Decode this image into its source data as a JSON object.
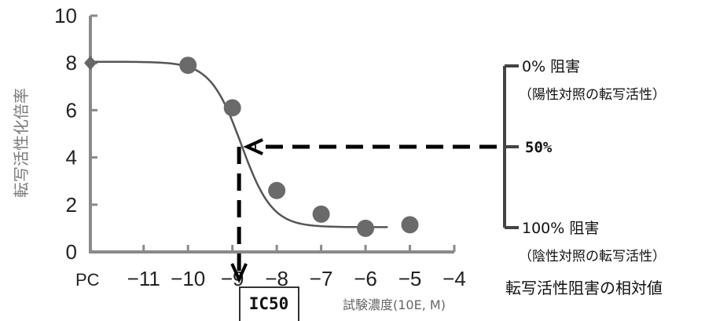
{
  "chart_data": {
    "type": "scatter",
    "xlabel": "試験濃度(10E, M)",
    "ylabel": "転写活性化倍率",
    "xlim": [
      -12.2,
      -4
    ],
    "ylim": [
      0,
      10
    ],
    "yticks": [
      0,
      2,
      4,
      6,
      8,
      10
    ],
    "xticks": [
      -11,
      -10,
      -9,
      -8,
      -7,
      -6,
      -5,
      -4
    ],
    "xtick_labels": [
      "−11",
      "−10",
      "−9",
      "−8",
      "−7",
      "−6",
      "−5",
      "−4"
    ],
    "pc_label": "PC",
    "pc_value": 8,
    "series": [
      {
        "x": [
          -10,
          -9,
          -8,
          -7,
          -6,
          -5
        ],
        "y": [
          7.9,
          6.1,
          2.6,
          1.6,
          1.0,
          1.15
        ]
      }
    ],
    "fit_curve": {
      "top": 8.05,
      "bottom": 1.05,
      "ic50_log": -8.8,
      "hill": 1.25,
      "x_range": [
        -12.2,
        -5.5
      ]
    },
    "ic50": {
      "label": "IC50",
      "x": -8.85,
      "y": 4.45
    },
    "colors": {
      "points": "#6a6a6a",
      "curve": "#555555",
      "axis": "#8a8a8a",
      "arrow": "#000000"
    }
  },
  "scale_panel": {
    "top_label": "0% 阻害",
    "top_sub": "（陽性対照の転写活性）",
    "mid_label": "50%",
    "bottom_label": "100% 阻害",
    "bottom_sub": "（陰性対照の転写活性）",
    "title": "転写活性阻害の相対値"
  }
}
